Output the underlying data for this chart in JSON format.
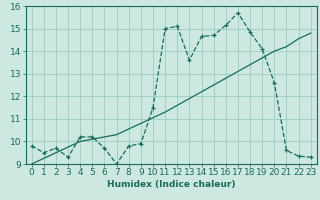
{
  "xlabel": "Humidex (Indice chaleur)",
  "bg_color": "#cce8e0",
  "grid_color": "#99ccc2",
  "line_color": "#1a6b5a",
  "xlim": [
    -0.5,
    23.5
  ],
  "ylim": [
    9,
    16
  ],
  "xticks": [
    0,
    1,
    2,
    3,
    4,
    5,
    6,
    7,
    8,
    9,
    10,
    11,
    12,
    13,
    14,
    15,
    16,
    17,
    18,
    19,
    20,
    21,
    22,
    23
  ],
  "yticks": [
    9,
    10,
    11,
    12,
    13,
    14,
    15,
    16
  ],
  "curve1_x": [
    0,
    1,
    2,
    3,
    4,
    5,
    6,
    7,
    8,
    9,
    10,
    11,
    12,
    13,
    14,
    15,
    16,
    17,
    18,
    19,
    20,
    21,
    22,
    23
  ],
  "curve1_y": [
    9.8,
    9.5,
    9.7,
    9.3,
    10.2,
    10.2,
    9.7,
    9.0,
    9.8,
    9.9,
    11.5,
    15.0,
    15.1,
    13.6,
    14.65,
    14.7,
    15.15,
    15.7,
    14.85,
    14.1,
    12.6,
    9.6,
    9.35,
    9.3
  ],
  "curve2_x": [
    0,
    1,
    2,
    3,
    4,
    5,
    6,
    7,
    8,
    9,
    10,
    11,
    12,
    13,
    14,
    15,
    16,
    17,
    18,
    19,
    20,
    21,
    22,
    23
  ],
  "curve2_y": [
    9.0,
    9.25,
    9.5,
    9.75,
    10.0,
    10.1,
    10.2,
    10.3,
    10.55,
    10.8,
    11.05,
    11.3,
    11.6,
    11.9,
    12.2,
    12.5,
    12.8,
    13.1,
    13.4,
    13.7,
    14.0,
    14.2,
    14.55,
    14.8
  ],
  "fontsize": 6.5
}
